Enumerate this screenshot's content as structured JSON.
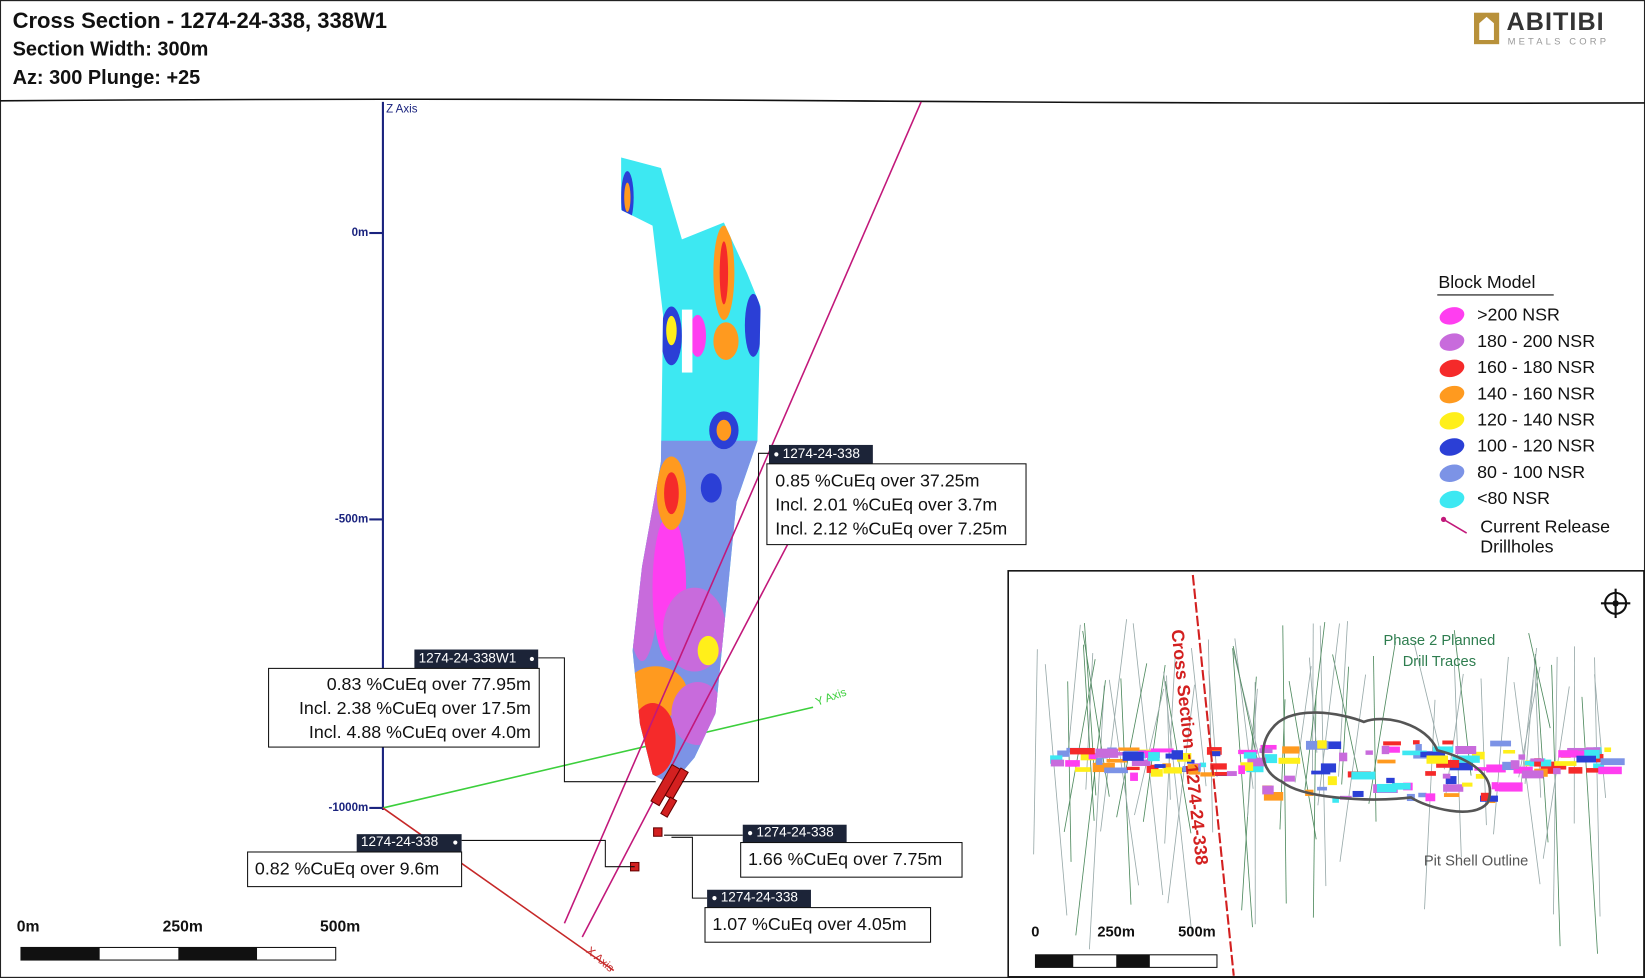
{
  "header": {
    "title": "Cross Section - 1274-24-338, 338W1",
    "section_width": "Section Width: 300m",
    "orientation": "Az: 300 Plunge: +25"
  },
  "logo": {
    "name": "ABITIBI",
    "subtitle": "METALS CORP"
  },
  "section": {
    "axes": {
      "z": "Z Axis",
      "y": "Y Axis",
      "x": "X Axis"
    },
    "elevation_labels": [
      "0m",
      "-500m",
      "-1000m"
    ],
    "scale_bar": [
      "0m",
      "250m",
      "500m"
    ]
  },
  "callouts": [
    {
      "hole": "1274-24-338",
      "lines": [
        "0.85 %CuEq over 37.25m",
        "Incl. 2.01 %CuEq over 3.7m",
        "Incl. 2.12 %CuEq over 7.25m"
      ]
    },
    {
      "hole": "1274-24-338W1",
      "lines": [
        "0.83 %CuEq over 77.95m",
        "Incl. 2.38 %CuEq over 17.5m",
        "Incl. 4.88 %CuEq over 4.0m"
      ]
    },
    {
      "hole": "1274-24-338",
      "lines": [
        "0.82 %CuEq over 9.6m"
      ]
    },
    {
      "hole": "1274-24-338",
      "lines": [
        "1.66 %CuEq over 7.75m"
      ]
    },
    {
      "hole": "1274-24-338",
      "lines": [
        "1.07 %CuEq over 4.05m"
      ]
    }
  ],
  "legend": {
    "title": "Block Model",
    "items": [
      {
        "label": ">200 NSR",
        "color": "#ff3ef0"
      },
      {
        "label": "180 - 200 NSR",
        "color": "#c86bdc"
      },
      {
        "label": "160 - 180 NSR",
        "color": "#f52a2a"
      },
      {
        "label": "140 - 160 NSR",
        "color": "#ff9a1f"
      },
      {
        "label": "120 - 140 NSR",
        "color": "#ffef1a"
      },
      {
        "label": "100 - 120 NSR",
        "color": "#2b3fd6"
      },
      {
        "label": "80 - 100 NSR",
        "color": "#7c93e6"
      },
      {
        "label": "<80 NSR",
        "color": "#3de8f2"
      }
    ],
    "drillholes": {
      "lines": [
        "Current Release",
        "Drillholes"
      ],
      "color": "#c2187a"
    }
  },
  "inset": {
    "section_label": "Cross Section - 1274-24-338",
    "planned": [
      "Phase 2 Planned",
      "Drill Traces"
    ],
    "pit_shell": "Pit Shell Outline",
    "scale_bar": [
      "0",
      "250m",
      "500m"
    ]
  }
}
